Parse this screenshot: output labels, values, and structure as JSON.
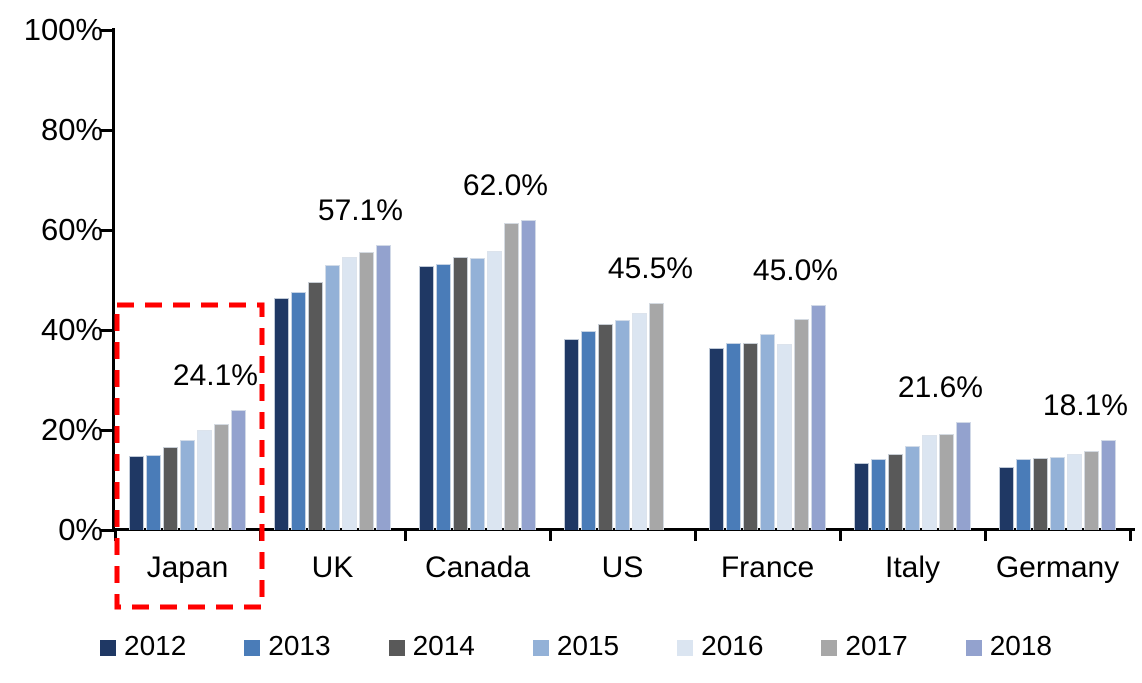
{
  "chart_data": {
    "type": "bar",
    "title": "",
    "xlabel": "",
    "ylabel": "",
    "ylim": [
      0,
      100
    ],
    "grid": false,
    "legend_position": "bottom",
    "y_ticks": [
      "0%",
      "20%",
      "40%",
      "60%",
      "80%",
      "100%"
    ],
    "categories": [
      "Japan",
      "UK",
      "Canada",
      "US",
      "France",
      "Italy",
      "Germany"
    ],
    "series": [
      {
        "name": "2012",
        "color": "#1F3864",
        "values": [
          14.8,
          46.4,
          52.9,
          38.2,
          36.5,
          13.4,
          12.6
        ]
      },
      {
        "name": "2013",
        "color": "#4A7CB8",
        "values": [
          15.1,
          47.7,
          53.3,
          39.9,
          37.5,
          14.2,
          14.2
        ]
      },
      {
        "name": "2014",
        "color": "#595959",
        "values": [
          16.7,
          49.7,
          54.7,
          41.2,
          37.5,
          15.3,
          14.4
        ]
      },
      {
        "name": "2015",
        "color": "#93B1D7",
        "values": [
          18.1,
          53.1,
          54.5,
          42.1,
          39.2,
          16.8,
          14.7
        ]
      },
      {
        "name": "2016",
        "color": "#DBE5F1",
        "values": [
          20.0,
          54.6,
          55.9,
          43.5,
          37.3,
          19.0,
          15.3
        ]
      },
      {
        "name": "2017",
        "color": "#A7A7A7",
        "values": [
          21.2,
          55.6,
          61.5,
          45.5,
          42.3,
          19.2,
          15.9
        ]
      },
      {
        "name": "2018",
        "color": "#93A2CE",
        "values": [
          24.1,
          57.1,
          62.0,
          null,
          45.0,
          21.6,
          18.1
        ]
      }
    ],
    "data_labels": [
      "24.1%",
      "57.1%",
      "62.0%",
      "45.5%",
      "45.0%",
      "21.6%",
      "18.1%"
    ],
    "annotations": {
      "highlight_box": {
        "category": "Japan",
        "color": "#FF0000",
        "style": "dashed"
      }
    }
  }
}
